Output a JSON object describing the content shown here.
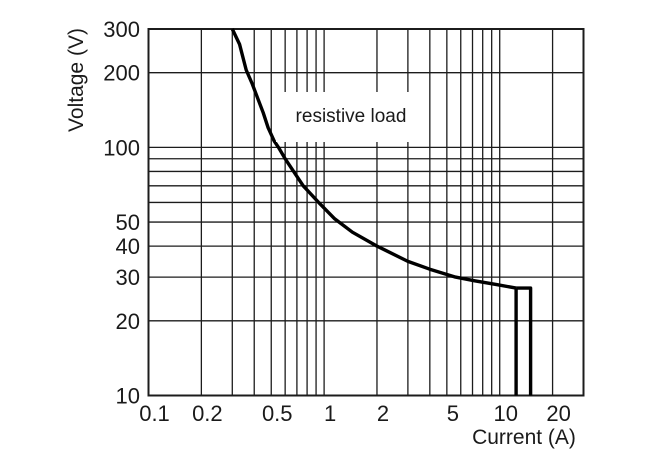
{
  "chart_data": {
    "type": "line",
    "title": "",
    "xlabel": "Current (A)",
    "ylabel": "Voltage (V)",
    "annotation": "resistive load",
    "x_scale": "log",
    "y_scale": "log",
    "xlim": [
      0.1,
      30
    ],
    "ylim": [
      10,
      300
    ],
    "grid": {
      "on": true,
      "x_lines": [
        0.2,
        0.3,
        0.4,
        0.5,
        0.6,
        0.7,
        0.8,
        0.9,
        1,
        2,
        3,
        4,
        5,
        6,
        7,
        8,
        9,
        10,
        20
      ],
      "y_lines": [
        20,
        30,
        40,
        50,
        60,
        70,
        80,
        90,
        100,
        200
      ]
    },
    "x_ticks": [
      {
        "value": 0.1,
        "label": "0.1"
      },
      {
        "value": 0.2,
        "label": "0.2"
      },
      {
        "value": 0.5,
        "label": "0.5"
      },
      {
        "value": 1,
        "label": "1"
      },
      {
        "value": 2,
        "label": "2"
      },
      {
        "value": 5,
        "label": "5"
      },
      {
        "value": 10,
        "label": "10"
      },
      {
        "value": 20,
        "label": "20"
      }
    ],
    "y_ticks": [
      {
        "value": 300,
        "label": "300"
      },
      {
        "value": 200,
        "label": "200"
      },
      {
        "value": 100,
        "label": "100"
      },
      {
        "value": 50,
        "label": "50"
      },
      {
        "value": 40,
        "label": "40"
      },
      {
        "value": 30,
        "label": "30"
      },
      {
        "value": 20,
        "label": "20"
      },
      {
        "value": 10,
        "label": "10"
      }
    ],
    "series": [
      {
        "name": "resistive load limit curve",
        "points": [
          [
            0.3,
            300
          ],
          [
            0.33,
            260
          ],
          [
            0.36,
            205
          ],
          [
            0.39,
            180
          ],
          [
            0.42,
            157
          ],
          [
            0.45,
            138
          ],
          [
            0.48,
            120
          ],
          [
            0.52,
            106
          ],
          [
            0.55,
            100
          ],
          [
            0.6,
            90
          ],
          [
            0.67,
            80
          ],
          [
            0.76,
            70
          ],
          [
            0.93,
            60
          ],
          [
            1.15,
            51.5
          ],
          [
            1.45,
            45.5
          ],
          [
            2.0,
            40
          ],
          [
            3.0,
            34.7
          ],
          [
            4.0,
            32.3
          ],
          [
            5.6,
            30
          ],
          [
            7.2,
            29
          ],
          [
            9.6,
            28
          ],
          [
            12.4,
            27.1
          ]
        ]
      }
    ],
    "end_drop": {
      "main_current": 12.4,
      "tab_current": 15,
      "tab_voltage": 27.1
    },
    "legend": "none",
    "colors": {
      "line": "#000000",
      "grid": "#1c1c1c",
      "frame": "#1c1c1c",
      "background": "#ffffff",
      "text": "#1a1a1a"
    }
  }
}
